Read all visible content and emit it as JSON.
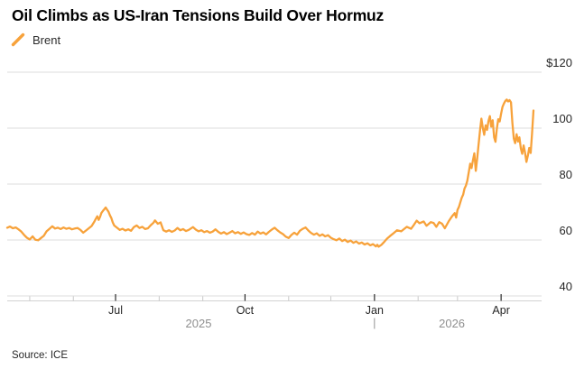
{
  "header": {
    "title": "Oil Climbs as US-Iran Tensions Build Over Hormuz",
    "legend_label": "Brent"
  },
  "footer": {
    "source": "Source: ICE"
  },
  "colors": {
    "series": "#F7A23B",
    "gridline": "#dcdcdc",
    "axis_line": "#d2d2d2",
    "major_tick": "#2b2b2b",
    "minor_tick": "#c9c9c9",
    "year_label": "#8f8f8f",
    "tick_label": "#262626"
  },
  "chart_data": {
    "type": "line",
    "title": "Oil Climbs as US-Iran Tensions Build Over Hormuz",
    "source": "ICE",
    "grid": "horizontal",
    "legend_position": "top-left",
    "x_unit": "days_since_2025-04-15",
    "x_domain": [
      0,
      374
    ],
    "ylim": [
      40,
      120
    ],
    "y_axis": {
      "side": "right",
      "ticks": [
        {
          "value": 120,
          "label": "$120"
        },
        {
          "value": 100,
          "label": "100"
        },
        {
          "value": 80,
          "label": "80"
        },
        {
          "value": 60,
          "label": "60"
        },
        {
          "value": 40,
          "label": "40"
        }
      ]
    },
    "x_axis": {
      "major_ticks": [
        {
          "d": 77,
          "label": "Jul"
        },
        {
          "d": 169,
          "label": "Oct"
        },
        {
          "d": 261,
          "label": "Jan"
        },
        {
          "d": 351,
          "label": "Apr"
        }
      ],
      "minor_tick_days": [
        16,
        47,
        108,
        139,
        200,
        230,
        292,
        320
      ],
      "year_labels": [
        {
          "d": 136,
          "label": "2025"
        },
        {
          "d": 316,
          "label": "2026"
        }
      ],
      "year_divider_d": 261
    },
    "series": [
      {
        "name": "Brent",
        "color": "#F7A23B",
        "points": [
          [
            0,
            64.4
          ],
          [
            2,
            64.8
          ],
          [
            4,
            64.2
          ],
          [
            6,
            64.5
          ],
          [
            8,
            63.8
          ],
          [
            10,
            63.0
          ],
          [
            12,
            61.8
          ],
          [
            14,
            60.8
          ],
          [
            16,
            60.2
          ],
          [
            18,
            61.3
          ],
          [
            20,
            60.1
          ],
          [
            22,
            59.9
          ],
          [
            24,
            60.7
          ],
          [
            26,
            61.5
          ],
          [
            28,
            63.1
          ],
          [
            30,
            64.0
          ],
          [
            32,
            64.9
          ],
          [
            34,
            64.1
          ],
          [
            36,
            64.4
          ],
          [
            38,
            63.9
          ],
          [
            40,
            64.5
          ],
          [
            42,
            64.0
          ],
          [
            44,
            64.3
          ],
          [
            46,
            63.8
          ],
          [
            48,
            64.1
          ],
          [
            50,
            64.3
          ],
          [
            52,
            63.6
          ],
          [
            54,
            62.6
          ],
          [
            56,
            63.4
          ],
          [
            58,
            64.2
          ],
          [
            60,
            65.0
          ],
          [
            62,
            66.6
          ],
          [
            63,
            67.6
          ],
          [
            64,
            68.5
          ],
          [
            65,
            67.2
          ],
          [
            66,
            68.3
          ],
          [
            67,
            69.7
          ],
          [
            68,
            70.4
          ],
          [
            69,
            71.0
          ],
          [
            70,
            71.6
          ],
          [
            71,
            70.8
          ],
          [
            72,
            70.1
          ],
          [
            73,
            68.8
          ],
          [
            74,
            67.8
          ],
          [
            75,
            66.3
          ],
          [
            76,
            65.2
          ],
          [
            78,
            64.4
          ],
          [
            80,
            63.6
          ],
          [
            82,
            64.0
          ],
          [
            84,
            63.4
          ],
          [
            86,
            63.8
          ],
          [
            88,
            63.3
          ],
          [
            90,
            64.6
          ],
          [
            92,
            65.2
          ],
          [
            94,
            64.3
          ],
          [
            96,
            64.7
          ],
          [
            98,
            63.9
          ],
          [
            100,
            64.2
          ],
          [
            102,
            65.3
          ],
          [
            104,
            66.2
          ],
          [
            105,
            67.0
          ],
          [
            107,
            65.8
          ],
          [
            109,
            66.3
          ],
          [
            111,
            63.5
          ],
          [
            113,
            63.0
          ],
          [
            115,
            63.5
          ],
          [
            117,
            62.9
          ],
          [
            119,
            63.4
          ],
          [
            121,
            64.3
          ],
          [
            123,
            63.5
          ],
          [
            125,
            63.9
          ],
          [
            127,
            63.2
          ],
          [
            129,
            63.6
          ],
          [
            132,
            64.6
          ],
          [
            134,
            63.7
          ],
          [
            136,
            63.1
          ],
          [
            138,
            63.5
          ],
          [
            140,
            62.8
          ],
          [
            142,
            63.2
          ],
          [
            144,
            62.6
          ],
          [
            146,
            63.0
          ],
          [
            148,
            63.8
          ],
          [
            150,
            62.9
          ],
          [
            152,
            62.3
          ],
          [
            154,
            62.8
          ],
          [
            156,
            62.1
          ],
          [
            158,
            62.6
          ],
          [
            160,
            63.2
          ],
          [
            162,
            62.4
          ],
          [
            164,
            62.8
          ],
          [
            166,
            62.2
          ],
          [
            168,
            62.7
          ],
          [
            170,
            62.1
          ],
          [
            172,
            61.8
          ],
          [
            174,
            62.5
          ],
          [
            176,
            61.9
          ],
          [
            178,
            63.0
          ],
          [
            180,
            62.3
          ],
          [
            182,
            62.7
          ],
          [
            184,
            62.0
          ],
          [
            186,
            62.9
          ],
          [
            188,
            63.7
          ],
          [
            190,
            64.4
          ],
          [
            192,
            63.5
          ],
          [
            194,
            62.7
          ],
          [
            196,
            62.1
          ],
          [
            198,
            61.2
          ],
          [
            200,
            60.7
          ],
          [
            202,
            61.8
          ],
          [
            204,
            62.6
          ],
          [
            206,
            61.9
          ],
          [
            208,
            63.3
          ],
          [
            210,
            64.0
          ],
          [
            212,
            64.5
          ],
          [
            214,
            63.4
          ],
          [
            216,
            62.5
          ],
          [
            218,
            61.9
          ],
          [
            220,
            62.4
          ],
          [
            222,
            61.5
          ],
          [
            224,
            62.0
          ],
          [
            226,
            61.3
          ],
          [
            228,
            61.7
          ],
          [
            230,
            60.8
          ],
          [
            232,
            60.3
          ],
          [
            234,
            59.9
          ],
          [
            236,
            60.5
          ],
          [
            238,
            59.6
          ],
          [
            240,
            60.1
          ],
          [
            242,
            59.3
          ],
          [
            244,
            59.8
          ],
          [
            246,
            59.0
          ],
          [
            248,
            59.5
          ],
          [
            250,
            58.7
          ],
          [
            252,
            59.1
          ],
          [
            254,
            58.4
          ],
          [
            256,
            58.8
          ],
          [
            258,
            58.1
          ],
          [
            260,
            58.5
          ],
          [
            262,
            57.7
          ],
          [
            263,
            58.3
          ],
          [
            264,
            57.6
          ],
          [
            266,
            58.3
          ],
          [
            268,
            59.4
          ],
          [
            270,
            60.5
          ],
          [
            272,
            61.4
          ],
          [
            274,
            62.2
          ],
          [
            277,
            63.5
          ],
          [
            280,
            63.1
          ],
          [
            282,
            63.9
          ],
          [
            284,
            64.7
          ],
          [
            287,
            64.0
          ],
          [
            289,
            65.4
          ],
          [
            291,
            66.9
          ],
          [
            293,
            66.0
          ],
          [
            296,
            66.6
          ],
          [
            298,
            65.1
          ],
          [
            301,
            66.4
          ],
          [
            303,
            66.1
          ],
          [
            305,
            64.7
          ],
          [
            307,
            66.4
          ],
          [
            309,
            65.8
          ],
          [
            311,
            64.2
          ],
          [
            314,
            66.9
          ],
          [
            316,
            68.4
          ],
          [
            318,
            69.6
          ],
          [
            319,
            68.0
          ],
          [
            320,
            70.7
          ],
          [
            321,
            71.8
          ],
          [
            323,
            75.1
          ],
          [
            324,
            76.2
          ],
          [
            325,
            78.4
          ],
          [
            326,
            79.5
          ],
          [
            327,
            81.2
          ],
          [
            328,
            84.2
          ],
          [
            329,
            87.3
          ],
          [
            330,
            85.7
          ],
          [
            331,
            88.6
          ],
          [
            332,
            91.0
          ],
          [
            333,
            84.7
          ],
          [
            334,
            89.0
          ],
          [
            335,
            94.2
          ],
          [
            336,
            99.2
          ],
          [
            337,
            103.4
          ],
          [
            338,
            100.0
          ],
          [
            339,
            97.6
          ],
          [
            340,
            101.0
          ],
          [
            341,
            99.4
          ],
          [
            342,
            102.5
          ],
          [
            343,
            104.3
          ],
          [
            344,
            100.5
          ],
          [
            345,
            102.8
          ],
          [
            346,
            96.7
          ],
          [
            347,
            95.1
          ],
          [
            348,
            100.0
          ],
          [
            349,
            103.2
          ],
          [
            350,
            102.4
          ],
          [
            351,
            105.1
          ],
          [
            352,
            107.6
          ],
          [
            353,
            108.8
          ],
          [
            354,
            109.7
          ],
          [
            355,
            110.2
          ],
          [
            356,
            109.5
          ],
          [
            357,
            110.0
          ],
          [
            358,
            109.2
          ],
          [
            359,
            102.0
          ],
          [
            360,
            96.3
          ],
          [
            361,
            94.6
          ],
          [
            362,
            97.8
          ],
          [
            363,
            95.2
          ],
          [
            364,
            96.7
          ],
          [
            365,
            92.7
          ],
          [
            366,
            90.8
          ],
          [
            367,
            93.8
          ],
          [
            368,
            91.3
          ],
          [
            369,
            87.9
          ],
          [
            370,
            90.2
          ],
          [
            371,
            92.9
          ],
          [
            372,
            91.1
          ],
          [
            373,
            98.0
          ],
          [
            374,
            106.3
          ]
        ]
      }
    ]
  }
}
